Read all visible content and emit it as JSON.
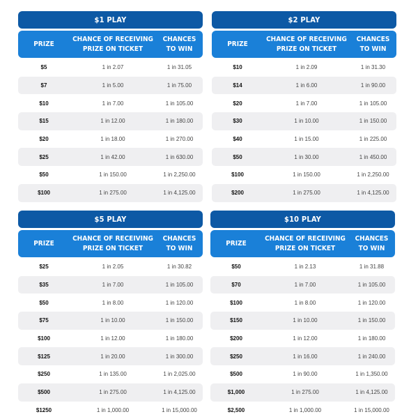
{
  "headers": {
    "prize": "PRIZE",
    "chance_line1": "CHANCE OF RECEIVING",
    "chance_line2": "PRIZE ON TICKET",
    "win_line1": "CHANCES",
    "win_line2": "TO WIN"
  },
  "colors": {
    "title_bar": "#0d59a5",
    "header_bar": "#1a80d8",
    "alt_row": "#efeff1"
  },
  "tables": [
    {
      "title": "$1 PLAY",
      "rows": [
        {
          "prize": "$5",
          "chance": "1 in 2.07",
          "win": "1 in 31.05"
        },
        {
          "prize": "$7",
          "chance": "1 in 5.00",
          "win": "1 in 75.00"
        },
        {
          "prize": "$10",
          "chance": "1 in 7.00",
          "win": "1 in 105.00"
        },
        {
          "prize": "$15",
          "chance": "1 in 12.00",
          "win": "1 in 180.00"
        },
        {
          "prize": "$20",
          "chance": "1 in 18.00",
          "win": "1 in 270.00"
        },
        {
          "prize": "$25",
          "chance": "1 in 42.00",
          "win": "1 in 630.00"
        },
        {
          "prize": "$50",
          "chance": "1 in 150.00",
          "win": "1 in 2,250.00"
        },
        {
          "prize": "$100",
          "chance": "1 in 275.00",
          "win": "1 in 4,125.00"
        }
      ]
    },
    {
      "title": "$2 PLAY",
      "rows": [
        {
          "prize": "$10",
          "chance": "1 in 2.09",
          "win": "1 in 31.30"
        },
        {
          "prize": "$14",
          "chance": "1 in 6.00",
          "win": "1 in 90.00"
        },
        {
          "prize": "$20",
          "chance": "1 in 7.00",
          "win": "1 in 105.00"
        },
        {
          "prize": "$30",
          "chance": "1 in 10.00",
          "win": "1 in 150.00"
        },
        {
          "prize": "$40",
          "chance": "1 in 15.00",
          "win": "1 in 225.00"
        },
        {
          "prize": "$50",
          "chance": "1 in 30.00",
          "win": "1 in 450.00"
        },
        {
          "prize": "$100",
          "chance": "1 in 150.00",
          "win": "1 in 2,250.00"
        },
        {
          "prize": "$200",
          "chance": "1 in 275.00",
          "win": "1 in 4,125.00"
        }
      ]
    },
    {
      "title": "$5 PLAY",
      "rows": [
        {
          "prize": "$25",
          "chance": "1 in 2.05",
          "win": "1 in 30.82"
        },
        {
          "prize": "$35",
          "chance": "1 in 7.00",
          "win": "1 in 105.00"
        },
        {
          "prize": "$50",
          "chance": "1 in 8.00",
          "win": "1 in 120.00"
        },
        {
          "prize": "$75",
          "chance": "1 in 10.00",
          "win": "1 in 150.00"
        },
        {
          "prize": "$100",
          "chance": "1 in 12.00",
          "win": "1 in 180.00"
        },
        {
          "prize": "$125",
          "chance": "1 in 20.00",
          "win": "1 in 300.00"
        },
        {
          "prize": "$250",
          "chance": "1 in 135.00",
          "win": "1 in 2,025.00"
        },
        {
          "prize": "$500",
          "chance": "1 in 275.00",
          "win": "1 in 4,125.00"
        },
        {
          "prize": "$1250",
          "chance": "1 in 1,000.00",
          "win": "1 in 15,000.00"
        }
      ]
    },
    {
      "title": "$10 PLAY",
      "rows": [
        {
          "prize": "$50",
          "chance": "1 in 2.13",
          "win": "1 in 31.88"
        },
        {
          "prize": "$70",
          "chance": "1 in 7.00",
          "win": "1 in 105.00"
        },
        {
          "prize": "$100",
          "chance": "1 in 8.00",
          "win": "1 in 120.00"
        },
        {
          "prize": "$150",
          "chance": "1 in 10.00",
          "win": "1 in 150.00"
        },
        {
          "prize": "$200",
          "chance": "1 in 12.00",
          "win": "1 in 180.00"
        },
        {
          "prize": "$250",
          "chance": "1 in 16.00",
          "win": "1 in 240.00"
        },
        {
          "prize": "$500",
          "chance": "1 in 90.00",
          "win": "1 in 1,350.00"
        },
        {
          "prize": "$1,000",
          "chance": "1 in 275.00",
          "win": "1 in 4,125.00"
        },
        {
          "prize": "$2,500",
          "chance": "1 in 1,000.00",
          "win": "1 in 15,000.00"
        }
      ]
    }
  ]
}
